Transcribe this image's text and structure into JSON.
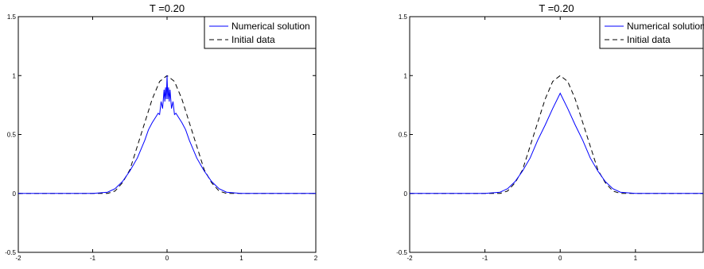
{
  "chart_data": [
    {
      "type": "line",
      "title": "T =0.20",
      "xlabel": "",
      "ylabel": "",
      "xlim": [
        -2,
        2
      ],
      "ylim": [
        -0.5,
        1.5
      ],
      "xticks": [
        "-2",
        "-1",
        "0",
        "1",
        "2"
      ],
      "yticks": [
        "-0.5",
        "0",
        "0.5",
        "1",
        "1.5"
      ],
      "grid": false,
      "legend_position": "top-right",
      "series": [
        {
          "name": "Numerical solution",
          "color": "#0000ff",
          "dash": "solid",
          "x": [
            -2,
            -1.0,
            -0.8,
            -0.7,
            -0.6,
            -0.5,
            -0.4,
            -0.3,
            -0.25,
            -0.2,
            -0.15,
            -0.12,
            -0.1,
            -0.08,
            -0.06,
            -0.04,
            -0.03,
            -0.02,
            -0.01,
            0,
            0.01,
            0.02,
            0.03,
            0.04,
            0.06,
            0.08,
            0.1,
            0.12,
            0.15,
            0.2,
            0.25,
            0.3,
            0.4,
            0.5,
            0.6,
            0.7,
            0.8,
            1.0,
            2
          ],
          "y": [
            0,
            0,
            0.01,
            0.04,
            0.1,
            0.19,
            0.3,
            0.45,
            0.54,
            0.6,
            0.65,
            0.68,
            0.67,
            0.78,
            0.72,
            0.88,
            0.78,
            0.9,
            0.8,
            1.0,
            0.8,
            0.9,
            0.78,
            0.88,
            0.72,
            0.78,
            0.67,
            0.68,
            0.65,
            0.6,
            0.54,
            0.45,
            0.3,
            0.19,
            0.1,
            0.04,
            0.01,
            0,
            0
          ]
        },
        {
          "name": "Initial data",
          "color": "#000000",
          "dash": "dashed",
          "x": [
            -2,
            -0.8,
            -0.7,
            -0.6,
            -0.5,
            -0.4,
            -0.3,
            -0.2,
            -0.1,
            0,
            0.1,
            0.2,
            0.3,
            0.4,
            0.5,
            0.6,
            0.7,
            0.8,
            2
          ],
          "y": [
            0,
            0,
            0.02,
            0.09,
            0.2,
            0.4,
            0.6,
            0.8,
            0.95,
            1.0,
            0.95,
            0.8,
            0.6,
            0.4,
            0.2,
            0.09,
            0.02,
            0,
            0
          ]
        }
      ]
    },
    {
      "type": "line",
      "title": "T =0.20",
      "xlabel": "",
      "ylabel": "",
      "xlim": [
        -2,
        1.9
      ],
      "ylim": [
        -0.5,
        1.5
      ],
      "xticks": [
        "-2",
        "-1",
        "0",
        "1"
      ],
      "yticks": [
        "-0.5",
        "0",
        "0.5",
        "1",
        "1.5"
      ],
      "grid": false,
      "legend_position": "top-right",
      "series": [
        {
          "name": "Numerical solution",
          "color": "#0000ff",
          "dash": "solid",
          "x": [
            -2,
            -1.0,
            -0.8,
            -0.7,
            -0.6,
            -0.5,
            -0.4,
            -0.3,
            -0.2,
            -0.1,
            0,
            0.1,
            0.2,
            0.3,
            0.4,
            0.5,
            0.6,
            0.7,
            0.8,
            1.0,
            1.9
          ],
          "y": [
            0,
            0,
            0.01,
            0.04,
            0.1,
            0.19,
            0.3,
            0.45,
            0.58,
            0.72,
            0.85,
            0.72,
            0.58,
            0.45,
            0.3,
            0.19,
            0.1,
            0.04,
            0.01,
            0,
            0
          ]
        },
        {
          "name": "Initial data",
          "color": "#000000",
          "dash": "dashed",
          "x": [
            -2,
            -0.8,
            -0.7,
            -0.6,
            -0.5,
            -0.4,
            -0.3,
            -0.2,
            -0.1,
            0,
            0.1,
            0.2,
            0.3,
            0.4,
            0.5,
            0.6,
            0.7,
            0.8,
            1.9
          ],
          "y": [
            0,
            0,
            0.02,
            0.09,
            0.2,
            0.4,
            0.6,
            0.8,
            0.95,
            1.0,
            0.95,
            0.8,
            0.6,
            0.4,
            0.2,
            0.09,
            0.02,
            0,
            0
          ]
        }
      ]
    }
  ]
}
